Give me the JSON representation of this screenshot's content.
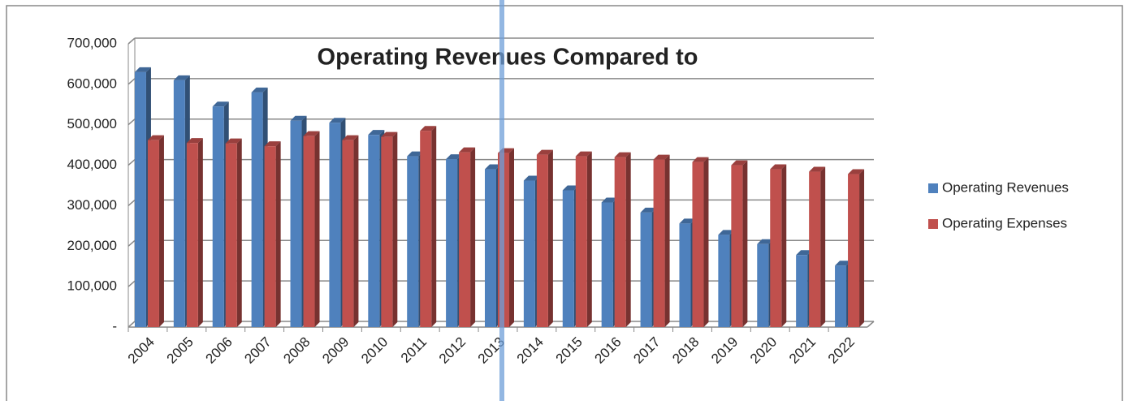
{
  "chart_data": {
    "type": "bar",
    "title": "Operating Revenues Compared to",
    "categories": [
      "2004",
      "2005",
      "2006",
      "2007",
      "2008",
      "2009",
      "2010",
      "2011",
      "2012",
      "2013",
      "2014",
      "2015",
      "2016",
      "2017",
      "2018",
      "2019",
      "2020",
      "2021",
      "2022"
    ],
    "series": [
      {
        "name": "Operating Revenues",
        "color": "#4f81bd",
        "values": [
          630000,
          610000,
          545000,
          580000,
          510000,
          505000,
          475000,
          422000,
          415000,
          390000,
          362000,
          338000,
          308000,
          283000,
          256000,
          228000,
          205000,
          178000,
          152000
        ]
      },
      {
        "name": "Operating Expenses",
        "color": "#c0504d",
        "values": [
          462000,
          455000,
          454000,
          447000,
          472000,
          462000,
          470000,
          485000,
          432000,
          430000,
          426000,
          422000,
          420000,
          414000,
          408000,
          400000,
          390000,
          384000,
          378000
        ]
      }
    ],
    "ylim": [
      0,
      700000
    ],
    "yticks": [
      {
        "value": 0,
        "label": "-"
      },
      {
        "value": 100000,
        "label": "100,000"
      },
      {
        "value": 200000,
        "label": "200,000"
      },
      {
        "value": 300000,
        "label": "300,000"
      },
      {
        "value": 400000,
        "label": "400,000"
      },
      {
        "value": 500000,
        "label": "500,000"
      },
      {
        "value": 600000,
        "label": "600,000"
      },
      {
        "value": 700000,
        "label": "700,000"
      }
    ],
    "grid": true,
    "legend": "right"
  }
}
